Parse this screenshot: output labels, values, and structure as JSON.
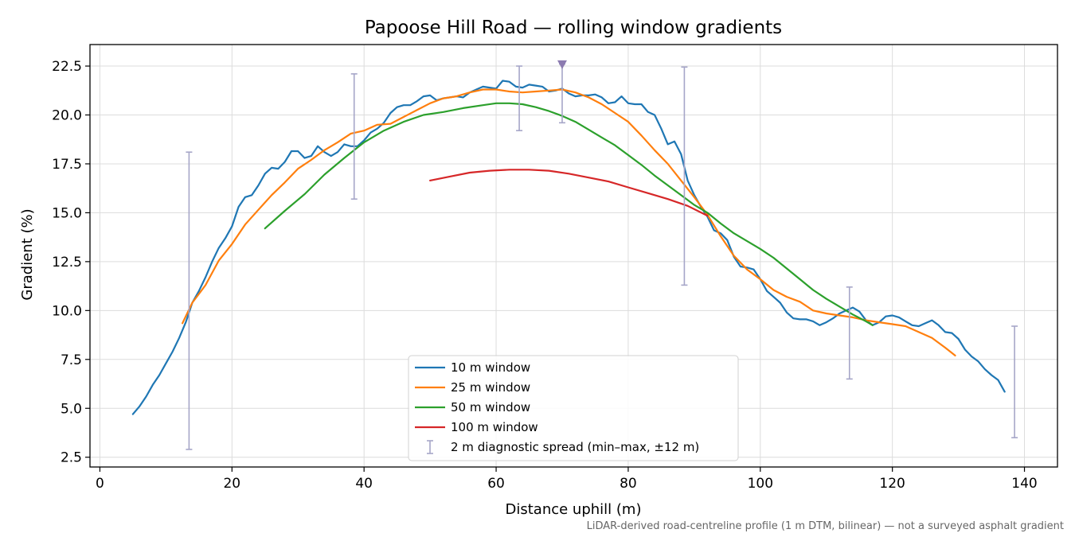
{
  "chart_data": {
    "type": "line",
    "title": "Papoose Hill Road — rolling window gradients",
    "xlabel": "Distance uphill (m)",
    "ylabel": "Gradient (%)",
    "xlim": [
      -1.5,
      145
    ],
    "ylim": [
      2.0,
      23.6
    ],
    "xticks": [
      0,
      20,
      40,
      60,
      80,
      100,
      120,
      140
    ],
    "yticks": [
      2.5,
      5.0,
      7.5,
      10.0,
      12.5,
      15.0,
      17.5,
      20.0,
      22.5
    ],
    "grid": true,
    "legend_position": "lower-center",
    "caption": "LiDAR-derived road-centreline profile (1 m DTM, bilinear) — not a surveyed asphalt gradient",
    "series": [
      {
        "name": "10 m window",
        "color": "#1f77b4",
        "x": [
          5,
          6,
          7,
          8,
          9,
          10,
          11,
          12,
          13,
          14,
          15,
          16,
          17,
          18,
          19,
          20,
          21,
          22,
          23,
          24,
          25,
          26,
          27,
          28,
          29,
          30,
          31,
          32,
          33,
          34,
          35,
          36,
          37,
          38,
          39,
          40,
          41,
          42,
          43,
          44,
          45,
          46,
          47,
          48,
          49,
          50,
          51,
          52,
          53,
          54,
          55,
          56,
          57,
          58,
          59,
          60,
          61,
          62,
          63,
          64,
          65,
          66,
          67,
          68,
          69,
          70,
          71,
          72,
          73,
          74,
          75,
          76,
          77,
          78,
          79,
          80,
          81,
          82,
          83,
          84,
          85,
          86,
          87,
          88,
          89,
          90,
          91,
          92,
          93,
          94,
          95,
          96,
          97,
          98,
          99,
          100,
          101,
          102,
          103,
          104,
          105,
          106,
          107,
          108,
          109,
          110,
          111,
          112,
          113,
          114,
          115,
          116,
          117,
          118,
          119,
          120,
          121,
          122,
          123,
          124,
          125,
          126,
          127,
          128,
          129,
          130,
          131,
          132,
          133,
          134,
          135,
          136,
          137
        ],
        "y": [
          4.7,
          5.1,
          5.6,
          6.2,
          6.7,
          7.3,
          7.9,
          8.6,
          9.4,
          10.4,
          11.0,
          11.7,
          12.5,
          13.2,
          13.7,
          14.3,
          15.3,
          15.8,
          15.9,
          16.4,
          17.0,
          17.3,
          17.25,
          17.6,
          18.15,
          18.15,
          17.8,
          17.9,
          18.4,
          18.1,
          17.9,
          18.1,
          18.5,
          18.4,
          18.4,
          18.7,
          19.1,
          19.3,
          19.6,
          20.1,
          20.4,
          20.5,
          20.5,
          20.7,
          20.95,
          21.0,
          20.75,
          20.85,
          20.9,
          20.95,
          20.9,
          21.15,
          21.3,
          21.45,
          21.4,
          21.35,
          21.75,
          21.7,
          21.45,
          21.4,
          21.55,
          21.5,
          21.45,
          21.2,
          21.25,
          21.35,
          21.1,
          20.95,
          21.0,
          21.0,
          21.05,
          20.9,
          20.6,
          20.65,
          20.95,
          20.6,
          20.55,
          20.55,
          20.15,
          20.0,
          19.3,
          18.5,
          18.65,
          18.0,
          16.65,
          15.9,
          15.3,
          14.8,
          14.1,
          13.95,
          13.6,
          12.75,
          12.25,
          12.2,
          12.1,
          11.6,
          11.0,
          10.7,
          10.4,
          9.9,
          9.6,
          9.55,
          9.55,
          9.45,
          9.25,
          9.4,
          9.6,
          9.85,
          10.0,
          10.15,
          9.95,
          9.5,
          9.25,
          9.4,
          9.7,
          9.75,
          9.65,
          9.45,
          9.25,
          9.2,
          9.35,
          9.5,
          9.25,
          8.9,
          8.85,
          8.55,
          8.0,
          7.65,
          7.4,
          7.0,
          6.7,
          6.45,
          5.85
        ]
      },
      {
        "name": "25 m window",
        "color": "#ff7f0e",
        "x": [
          12.5,
          14,
          16,
          18,
          20,
          22,
          24,
          26,
          28,
          30,
          32,
          34,
          36,
          38,
          40,
          42,
          44,
          46,
          48,
          50,
          52,
          54,
          56,
          58,
          60,
          62,
          64,
          66,
          68,
          70,
          72,
          74,
          76,
          78,
          80,
          82,
          84,
          86,
          88,
          90,
          92,
          94,
          96,
          98,
          100,
          102,
          104,
          106,
          108,
          110,
          112,
          114,
          116,
          118,
          120,
          122,
          124,
          126,
          128,
          129.5
        ],
        "y": [
          9.35,
          10.4,
          11.3,
          12.55,
          13.4,
          14.4,
          15.15,
          15.9,
          16.55,
          17.25,
          17.7,
          18.2,
          18.6,
          19.05,
          19.2,
          19.5,
          19.55,
          19.9,
          20.25,
          20.6,
          20.85,
          20.95,
          21.15,
          21.3,
          21.3,
          21.2,
          21.15,
          21.2,
          21.25,
          21.3,
          21.15,
          20.9,
          20.55,
          20.1,
          19.65,
          18.95,
          18.2,
          17.5,
          16.65,
          15.8,
          14.9,
          13.8,
          12.8,
          12.1,
          11.6,
          11.05,
          10.7,
          10.45,
          10.0,
          9.85,
          9.75,
          9.65,
          9.5,
          9.4,
          9.3,
          9.2,
          8.9,
          8.6,
          8.1,
          7.7
        ]
      },
      {
        "name": "50 m window",
        "color": "#2ca02c",
        "x": [
          25,
          28,
          31,
          34,
          37,
          40,
          43,
          46,
          49,
          52,
          55,
          58,
          60,
          62,
          64,
          66,
          68,
          70,
          72,
          74,
          76,
          78,
          80,
          82,
          84,
          86,
          88,
          90,
          92,
          94,
          96,
          98,
          100,
          102,
          104,
          106,
          108,
          110,
          112,
          114,
          116,
          117
        ],
        "y": [
          14.2,
          15.1,
          15.95,
          16.95,
          17.8,
          18.6,
          19.2,
          19.65,
          20.0,
          20.15,
          20.35,
          20.5,
          20.6,
          20.6,
          20.55,
          20.4,
          20.2,
          19.95,
          19.65,
          19.25,
          18.85,
          18.45,
          17.95,
          17.45,
          16.9,
          16.4,
          15.9,
          15.4,
          15.0,
          14.45,
          13.95,
          13.55,
          13.15,
          12.7,
          12.15,
          11.6,
          11.05,
          10.6,
          10.2,
          9.8,
          9.45,
          9.25
        ]
      },
      {
        "name": "100 m window",
        "color": "#d62728",
        "x": [
          50,
          53,
          56,
          59,
          62,
          65,
          68,
          71,
          74,
          77,
          80,
          83,
          86,
          89,
          92
        ],
        "y": [
          16.65,
          16.85,
          17.05,
          17.15,
          17.2,
          17.2,
          17.15,
          17.0,
          16.8,
          16.6,
          16.3,
          16.0,
          15.7,
          15.35,
          14.85
        ]
      }
    ],
    "diagnostic_spread": {
      "name": "2 m diagnostic spread (min–max, ±12 m)",
      "color": "#a6a6c8",
      "points": [
        {
          "x": 13.5,
          "min": 2.9,
          "max": 18.1
        },
        {
          "x": 38.5,
          "min": 15.7,
          "max": 22.1
        },
        {
          "x": 63.5,
          "min": 19.2,
          "max": 22.5
        },
        {
          "x": 70.0,
          "min": 19.6,
          "max": 22.6
        },
        {
          "x": 88.5,
          "min": 11.3,
          "max": 22.45
        },
        {
          "x": 113.5,
          "min": 6.5,
          "max": 11.2
        },
        {
          "x": 138.5,
          "min": 3.5,
          "max": 9.2
        }
      ]
    },
    "peak_marker": {
      "x": 70.0,
      "y": 22.55,
      "color": "#8c7bb0"
    }
  }
}
